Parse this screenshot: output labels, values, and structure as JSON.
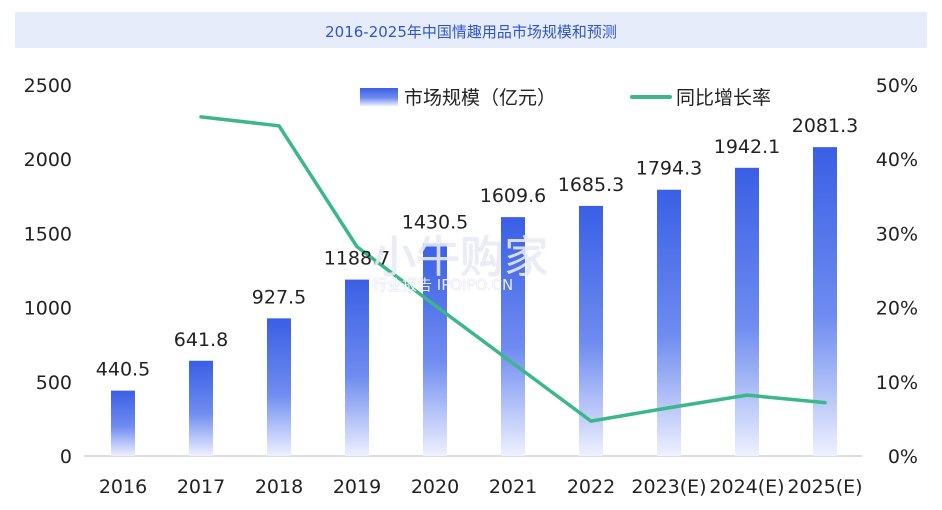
{
  "chart_data": {
    "type": "bar",
    "title": "2016-2025年中国情趣用品市场规模和预测",
    "categories": [
      "2016",
      "2017",
      "2018",
      "2019",
      "2020",
      "2021",
      "2022",
      "2023(E)",
      "2024(E)",
      "2025(E)"
    ],
    "series": [
      {
        "name": "市场规模（亿元）",
        "type": "bar",
        "axis": "left",
        "values": [
          440.5,
          641.8,
          927.5,
          1188.7,
          1430.5,
          1609.6,
          1685.3,
          1794.3,
          1942.1,
          2081.3
        ],
        "labels": [
          "440.5",
          "641.8",
          "927.5",
          "1188.7",
          "1430.5",
          "1609.6",
          "1685.3",
          "1794.3",
          "1942.1",
          "2081.3"
        ]
      },
      {
        "name": "同比增长率",
        "type": "line",
        "axis": "right",
        "values": [
          null,
          45.7,
          44.5,
          28.2,
          20.3,
          12.5,
          4.7,
          6.5,
          8.2,
          7.2
        ]
      }
    ],
    "y_left": {
      "ylim": [
        0,
        2500
      ],
      "ticks": [
        "0",
        "500",
        "1000",
        "1500",
        "2000",
        "2500"
      ]
    },
    "y_right": {
      "ylim": [
        0,
        50
      ],
      "ticks": [
        "0%",
        "10%",
        "20%",
        "30%",
        "40%",
        "50%"
      ]
    },
    "legend_position": "top-center",
    "grid": false,
    "colors": {
      "bar_top": "#3a5fe5",
      "bar_bottom": "#eef1ff",
      "line": "#3bb78a",
      "title_bg": "#e7ecfb",
      "title_text": "#2e56c8"
    }
  },
  "watermark": {
    "main": "小牛购家",
    "sub": "行业报告 IPOIPO.CN"
  }
}
